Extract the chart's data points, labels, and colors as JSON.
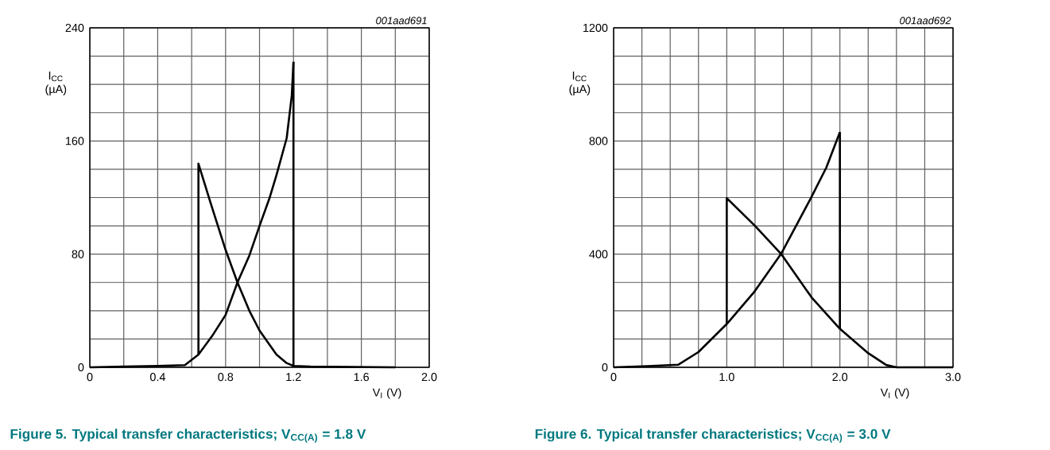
{
  "chart_data": [
    {
      "type": "line",
      "title": "Figure 5. Typical transfer characteristics; V$_{CC(A)}$ = 1.8 V",
      "xlabel": "V$_{I}$ (V)",
      "ylabel": "I$_{CC}$ (µA)",
      "annotations": [
        "001aad691"
      ],
      "series": [
        {
          "color": "#000000",
          "x": [
            0,
            0.2,
            0.4,
            0.56,
            0.64,
            0.72,
            0.8,
            0.87,
            0.94,
            1.0,
            1.06,
            1.1,
            1.16,
            1.19,
            1.2
          ],
          "values": [
            0,
            0.5,
            1,
            1.5,
            9,
            22,
            37,
            60,
            79,
            100,
            120,
            136,
            162,
            192,
            216
          ]
        },
        {
          "color": "#000000",
          "x": [
            1.2,
            1.2,
            1.3,
            1.8
          ],
          "values": [
            216,
            1,
            0.5,
            0
          ]
        },
        {
          "color": "#000000",
          "x": [
            0.64,
            0.64,
            0.72,
            0.8,
            0.87,
            0.94,
            1.0,
            1.1,
            1.16,
            1.2
          ],
          "values": [
            9,
            144,
            113,
            83,
            60,
            40,
            26,
            9,
            3,
            1
          ]
        }
      ],
      "xlim": [
        0,
        2.0
      ],
      "ylim": [
        0,
        240
      ],
      "xticks": [
        0,
        {
          "value": 0.2,
          "label": null
        },
        0.4,
        {
          "value": 0.6,
          "label": null
        },
        0.8,
        {
          "value": 1.0,
          "label": null
        },
        1.2,
        {
          "value": 1.4,
          "label": null
        },
        1.6,
        {
          "value": 1.8,
          "label": null
        },
        {
          "value": 2.0,
          "label": "2.0"
        }
      ],
      "yticks": [
        0,
        {
          "value": 20,
          "label": null
        },
        {
          "value": 40,
          "label": null
        },
        {
          "value": 60,
          "label": null
        },
        80,
        {
          "value": 100,
          "label": null
        },
        {
          "value": 120,
          "label": null
        },
        {
          "value": 140,
          "label": null
        },
        160,
        {
          "value": 180,
          "label": null
        },
        {
          "value": 200,
          "label": null
        },
        {
          "value": 220,
          "label": null
        },
        240
      ],
      "grid": true,
      "marker": "none",
      "line_style": "solid"
    },
    {
      "type": "line",
      "title": "Figure 6. Typical transfer characteristics; V$_{CC(A)}$ = 3.0 V",
      "xlabel": "V$_{I}$ (V)",
      "ylabel": "I$_{CC}$ (µA)",
      "annotations": [
        "001aad692"
      ],
      "series": [
        {
          "color": "#000000",
          "x": [
            0,
            0.3,
            0.57,
            0.75,
            1.0,
            1.24,
            1.48,
            1.75,
            1.88,
            2.0
          ],
          "values": [
            0,
            4,
            9,
            54,
            153,
            265,
            401,
            603,
            706,
            831
          ]
        },
        {
          "color": "#000000",
          "x": [
            2.0,
            2.0,
            2.25,
            2.41,
            2.5,
            3.0
          ],
          "values": [
            831,
            136,
            50,
            8,
            0,
            0
          ]
        },
        {
          "color": "#000000",
          "x": [
            1.0,
            1.0,
            1.25,
            1.48,
            1.75,
            2.0
          ],
          "values": [
            153,
            598,
            500,
            401,
            247,
            136
          ]
        }
      ],
      "xlim": [
        0,
        3.0
      ],
      "ylim": [
        0,
        1200
      ],
      "xticks": [
        0,
        {
          "value": 0.25,
          "label": null
        },
        {
          "value": 0.5,
          "label": null
        },
        {
          "value": 0.75,
          "label": null
        },
        {
          "value": 1.0,
          "label": "1.0"
        },
        {
          "value": 1.25,
          "label": null
        },
        {
          "value": 1.5,
          "label": null
        },
        {
          "value": 1.75,
          "label": null
        },
        {
          "value": 2.0,
          "label": "2.0"
        },
        {
          "value": 2.25,
          "label": null
        },
        {
          "value": 2.5,
          "label": null
        },
        {
          "value": 2.75,
          "label": null
        },
        {
          "value": 3.0,
          "label": "3.0"
        }
      ],
      "yticks": [
        0,
        {
          "value": 100,
          "label": null
        },
        {
          "value": 200,
          "label": null
        },
        {
          "value": 300,
          "label": null
        },
        400,
        {
          "value": 500,
          "label": null
        },
        {
          "value": 600,
          "label": null
        },
        {
          "value": 700,
          "label": null
        },
        800,
        {
          "value": 900,
          "label": null
        },
        {
          "value": 1000,
          "label": null
        },
        {
          "value": 1100,
          "label": null
        },
        1200
      ],
      "grid": true,
      "marker": "none",
      "line_style": "solid"
    }
  ]
}
